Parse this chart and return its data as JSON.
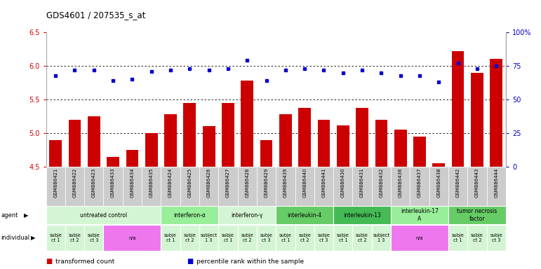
{
  "title": "GDS4601 / 207535_s_at",
  "samples": [
    "GSM886421",
    "GSM886422",
    "GSM886423",
    "GSM886433",
    "GSM886434",
    "GSM886435",
    "GSM886424",
    "GSM886425",
    "GSM886426",
    "GSM886427",
    "GSM886428",
    "GSM886429",
    "GSM886439",
    "GSM886440",
    "GSM886441",
    "GSM886430",
    "GSM886431",
    "GSM886432",
    "GSM886436",
    "GSM886437",
    "GSM886438",
    "GSM886442",
    "GSM886443",
    "GSM886444"
  ],
  "bar_values": [
    4.9,
    5.2,
    5.25,
    4.65,
    4.75,
    5.0,
    5.28,
    5.45,
    5.1,
    5.45,
    5.78,
    4.9,
    5.28,
    5.38,
    5.2,
    5.12,
    5.38,
    5.2,
    5.05,
    4.95,
    4.55,
    6.22,
    5.9,
    6.1
  ],
  "dot_values": [
    68,
    72,
    72,
    64,
    65,
    71,
    72,
    73,
    72,
    73,
    79,
    64,
    72,
    73,
    72,
    70,
    72,
    70,
    68,
    68,
    63,
    77,
    73,
    75
  ],
  "ylim_left": [
    4.5,
    6.5
  ],
  "ylim_right": [
    0,
    100
  ],
  "yticks_left": [
    4.5,
    5.0,
    5.5,
    6.0,
    6.5
  ],
  "yticks_right": [
    0,
    25,
    50,
    75,
    100
  ],
  "bar_color": "#cc0000",
  "dot_color": "#0000cc",
  "agents": [
    {
      "label": "untreated control",
      "start": 0,
      "end": 6,
      "color": "#d4f5d4"
    },
    {
      "label": "interferon-α",
      "start": 6,
      "end": 9,
      "color": "#99ee99"
    },
    {
      "label": "interferon-γ",
      "start": 9,
      "end": 12,
      "color": "#d4f5d4"
    },
    {
      "label": "interleukin-4",
      "start": 12,
      "end": 15,
      "color": "#66cc66"
    },
    {
      "label": "interleukin-13",
      "start": 15,
      "end": 18,
      "color": "#44bb55"
    },
    {
      "label": "interleukin-17\nA",
      "start": 18,
      "end": 21,
      "color": "#99ee99"
    },
    {
      "label": "tumor necrosis\nfactor",
      "start": 21,
      "end": 24,
      "color": "#66cc66"
    }
  ],
  "individuals": [
    {
      "label": "subje\nct 1",
      "start": 0,
      "end": 1,
      "color": "#d4f5d4"
    },
    {
      "label": "subje\nct 2",
      "start": 1,
      "end": 2,
      "color": "#d4f5d4"
    },
    {
      "label": "subje\nct 3",
      "start": 2,
      "end": 3,
      "color": "#d4f5d4"
    },
    {
      "label": "n/a",
      "start": 3,
      "end": 6,
      "color": "#ee77ee"
    },
    {
      "label": "subje\nct 1",
      "start": 6,
      "end": 7,
      "color": "#d4f5d4"
    },
    {
      "label": "subje\nct 2",
      "start": 7,
      "end": 8,
      "color": "#d4f5d4"
    },
    {
      "label": "subject\n1 3",
      "start": 8,
      "end": 9,
      "color": "#d4f5d4"
    },
    {
      "label": "subje\nct 1",
      "start": 9,
      "end": 10,
      "color": "#d4f5d4"
    },
    {
      "label": "subje\nct 2",
      "start": 10,
      "end": 11,
      "color": "#d4f5d4"
    },
    {
      "label": "subje\nct 3",
      "start": 11,
      "end": 12,
      "color": "#d4f5d4"
    },
    {
      "label": "subje\nct 1",
      "start": 12,
      "end": 13,
      "color": "#d4f5d4"
    },
    {
      "label": "subje\nct 2",
      "start": 13,
      "end": 14,
      "color": "#d4f5d4"
    },
    {
      "label": "subje\nct 3",
      "start": 14,
      "end": 15,
      "color": "#d4f5d4"
    },
    {
      "label": "subje\nct 1",
      "start": 15,
      "end": 16,
      "color": "#d4f5d4"
    },
    {
      "label": "subje\nct 2",
      "start": 16,
      "end": 17,
      "color": "#d4f5d4"
    },
    {
      "label": "subject\n1 3",
      "start": 17,
      "end": 18,
      "color": "#d4f5d4"
    },
    {
      "label": "n/a",
      "start": 18,
      "end": 21,
      "color": "#ee77ee"
    },
    {
      "label": "subje\nct 1",
      "start": 21,
      "end": 22,
      "color": "#d4f5d4"
    },
    {
      "label": "subje\nct 2",
      "start": 22,
      "end": 23,
      "color": "#d4f5d4"
    },
    {
      "label": "subje\nct 3",
      "start": 23,
      "end": 24,
      "color": "#d4f5d4"
    }
  ],
  "legend_items": [
    {
      "color": "#cc0000",
      "label": "transformed count"
    },
    {
      "color": "#0000cc",
      "label": "percentile rank within the sample"
    }
  ],
  "bg_color": "#ffffff",
  "sample_bg": "#cccccc"
}
